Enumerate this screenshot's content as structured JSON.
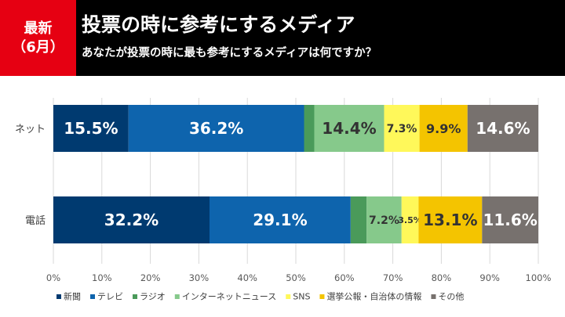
{
  "header": {
    "badge_line1": "最新",
    "badge_line2": "（6月）",
    "title": "投票の時に参考にするメディア",
    "subtitle": "あなたが投票の時に最も参考にするメディアは何ですか？"
  },
  "chart_data": {
    "type": "bar",
    "orientation": "horizontal",
    "stacked": true,
    "categories": [
      "ネット",
      "電話"
    ],
    "series": [
      {
        "name": "新聞",
        "color": "#003a70",
        "values": [
          15.5,
          32.2
        ],
        "labels": [
          "15.5%",
          "32.2%"
        ]
      },
      {
        "name": "テレビ",
        "color": "#0e64ad",
        "values": [
          36.2,
          29.1
        ],
        "labels": [
          "36.2%",
          "29.1%"
        ]
      },
      {
        "name": "ラジオ",
        "color": "#4a9a5a",
        "values": [
          2.1,
          3.3
        ],
        "labels": [
          "",
          ""
        ]
      },
      {
        "name": "インターネットニュース",
        "color": "#86c98b",
        "values": [
          14.4,
          7.2
        ],
        "labels": [
          "14.4%",
          "7.2%"
        ]
      },
      {
        "name": "SNS",
        "color": "#fff85a",
        "values": [
          7.3,
          3.5
        ],
        "labels": [
          "7.3%",
          "3.5%"
        ]
      },
      {
        "name": "選挙公報・自治体の情報",
        "color": "#f4c400",
        "values": [
          9.9,
          13.1
        ],
        "labels": [
          "9.9%",
          "13.1%"
        ]
      },
      {
        "name": "その他",
        "color": "#77716e",
        "values": [
          14.6,
          11.6
        ],
        "labels": [
          "14.6%",
          "11.6%"
        ]
      }
    ],
    "x_ticks": [
      "0%",
      "10%",
      "20%",
      "30%",
      "40%",
      "50%",
      "60%",
      "70%",
      "80%",
      "90%",
      "100%"
    ],
    "xlim": [
      0,
      100
    ],
    "grid": true,
    "legend": "bottom"
  }
}
